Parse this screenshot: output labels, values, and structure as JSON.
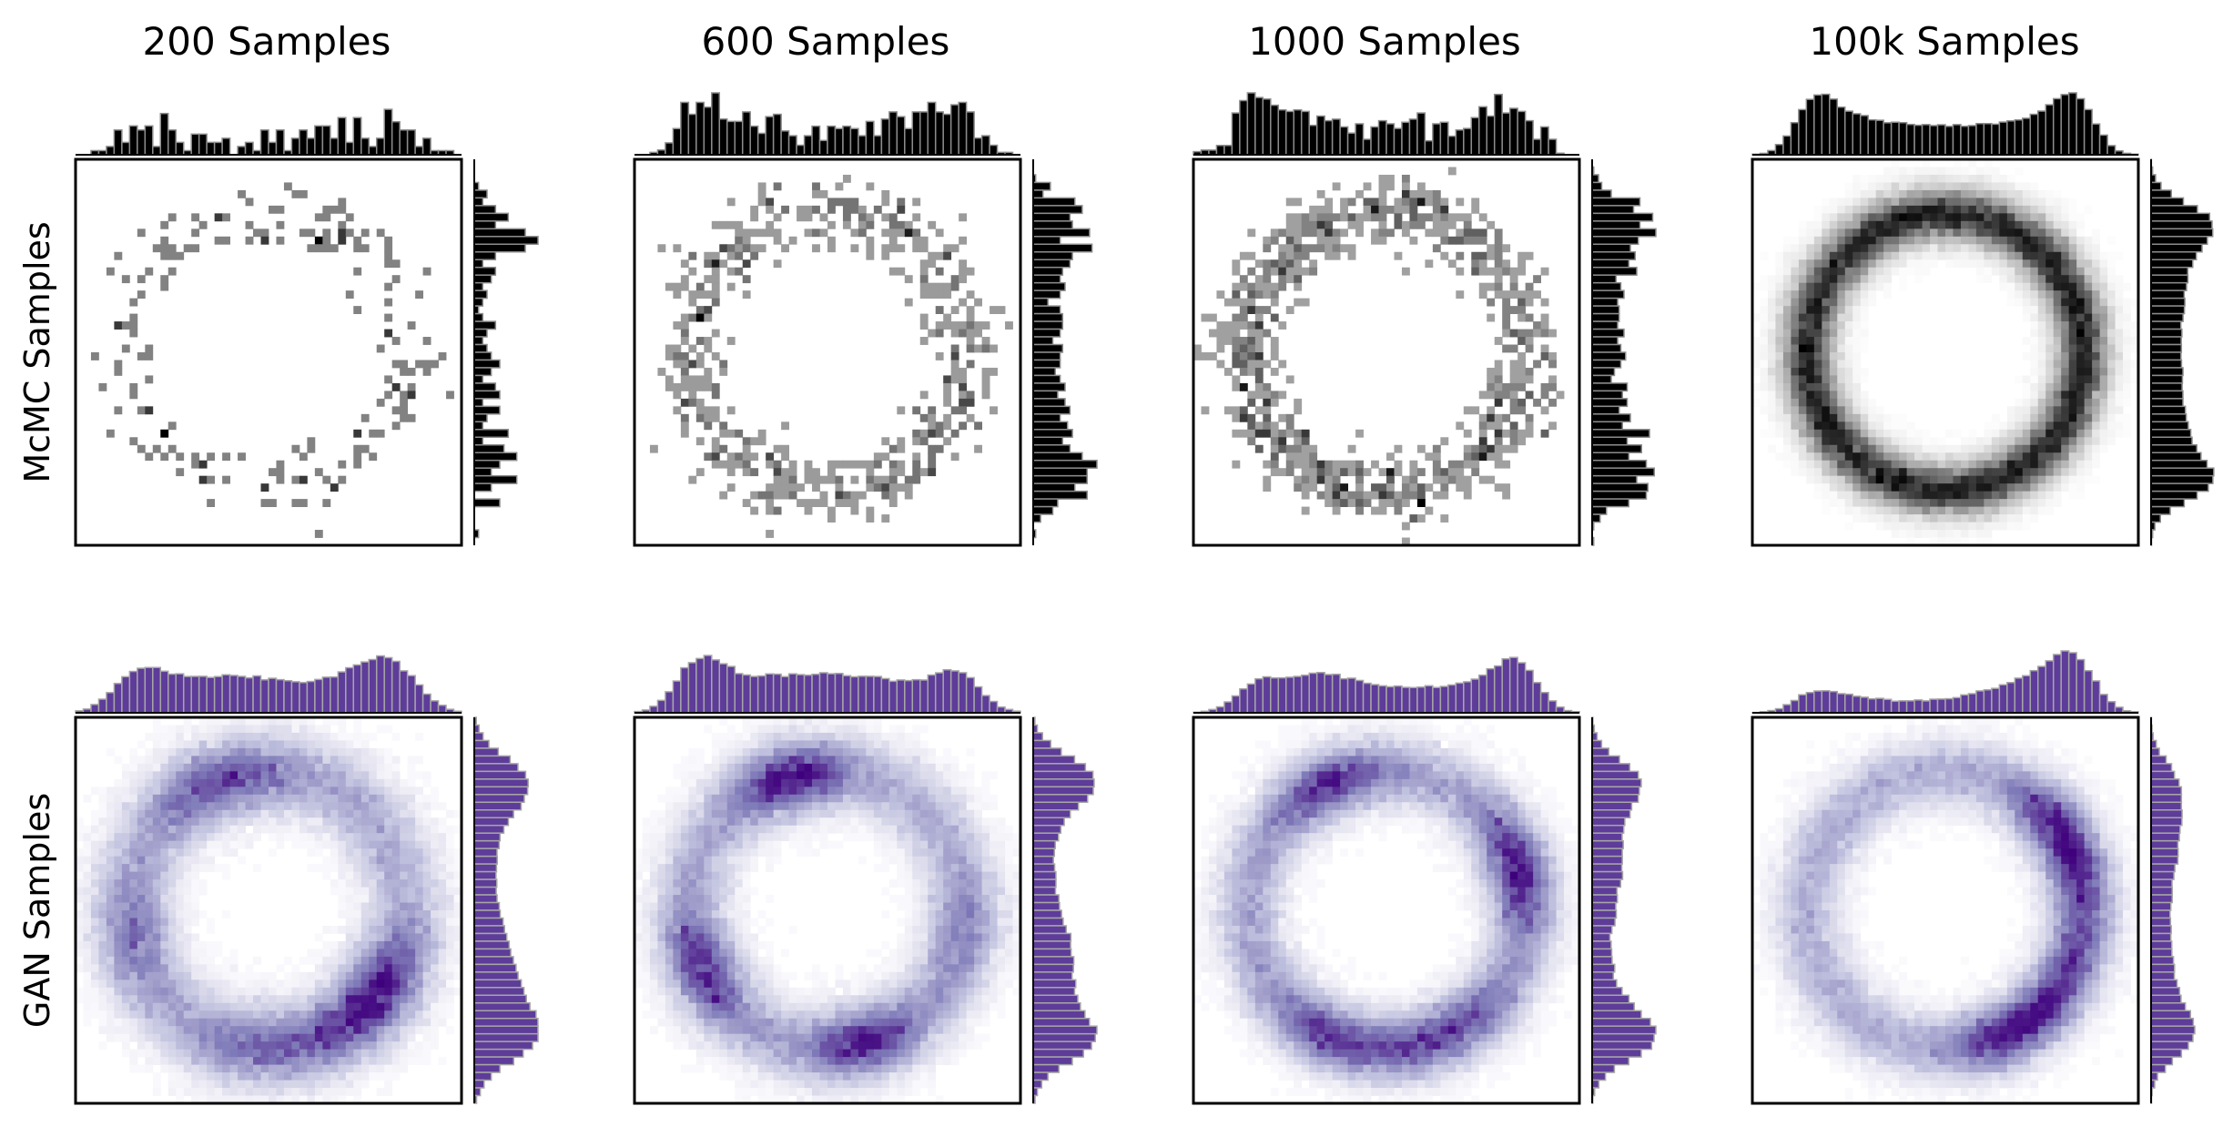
{
  "figure": {
    "column_titles": [
      "200 Samples",
      "600 Samples",
      "1000 Samples",
      "100k Samples"
    ],
    "row_labels": [
      "McMC Samples",
      "GAN Samples"
    ]
  },
  "chart_data": [
    {
      "type": "heatmap",
      "title": "200 Samples",
      "ylabel": "McMC Samples",
      "samples": 200,
      "source": "mcmc",
      "colormap": "Greys",
      "grid_bins": 50,
      "ring_radius": 0.8,
      "ring_width": 0.1,
      "marginal_histograms": [
        "top",
        "right"
      ]
    },
    {
      "type": "heatmap",
      "title": "600 Samples",
      "samples": 600,
      "source": "mcmc",
      "colormap": "Greys",
      "grid_bins": 50,
      "ring_radius": 0.8,
      "ring_width": 0.1,
      "marginal_histograms": [
        "top",
        "right"
      ]
    },
    {
      "type": "heatmap",
      "title": "1000 Samples",
      "samples": 1000,
      "source": "mcmc",
      "colormap": "Greys",
      "grid_bins": 50,
      "ring_radius": 0.8,
      "ring_width": 0.1,
      "marginal_histograms": [
        "top",
        "right"
      ]
    },
    {
      "type": "heatmap",
      "title": "100k Samples",
      "samples": 100000,
      "source": "mcmc",
      "colormap": "Greys",
      "grid_bins": 50,
      "ring_radius": 0.8,
      "ring_width": 0.1,
      "marginal_histograms": [
        "top",
        "right"
      ]
    },
    {
      "type": "heatmap",
      "ylabel": "GAN Samples",
      "model_trained_on": 200,
      "source": "gan",
      "colormap": "Purples",
      "grid_bins": 50,
      "ring_radius": 0.8,
      "ring_width": 0.13,
      "marginal_histograms": [
        "top",
        "right"
      ]
    },
    {
      "type": "heatmap",
      "model_trained_on": 600,
      "source": "gan",
      "colormap": "Purples",
      "grid_bins": 50,
      "ring_radius": 0.8,
      "ring_width": 0.12,
      "marginal_histograms": [
        "top",
        "right"
      ]
    },
    {
      "type": "heatmap",
      "model_trained_on": 1000,
      "source": "gan",
      "colormap": "Purples",
      "grid_bins": 50,
      "ring_radius": 0.8,
      "ring_width": 0.11,
      "marginal_histograms": [
        "top",
        "right"
      ]
    },
    {
      "type": "heatmap",
      "model_trained_on": 100000,
      "source": "gan",
      "colormap": "Purples",
      "grid_bins": 50,
      "ring_radius": 0.8,
      "ring_width": 0.11,
      "marginal_histograms": [
        "top",
        "right"
      ]
    }
  ],
  "colors": {
    "mcmc_hist_fill": "#000000",
    "mcmc_hist_edge": "#8c8c8c",
    "gan_hist_fill": "#5e3c99",
    "gan_hist_edge": "#a6a6a6",
    "greys_max": "#000000",
    "purples_max": "#3f007d",
    "axis_frame": "#000000"
  }
}
